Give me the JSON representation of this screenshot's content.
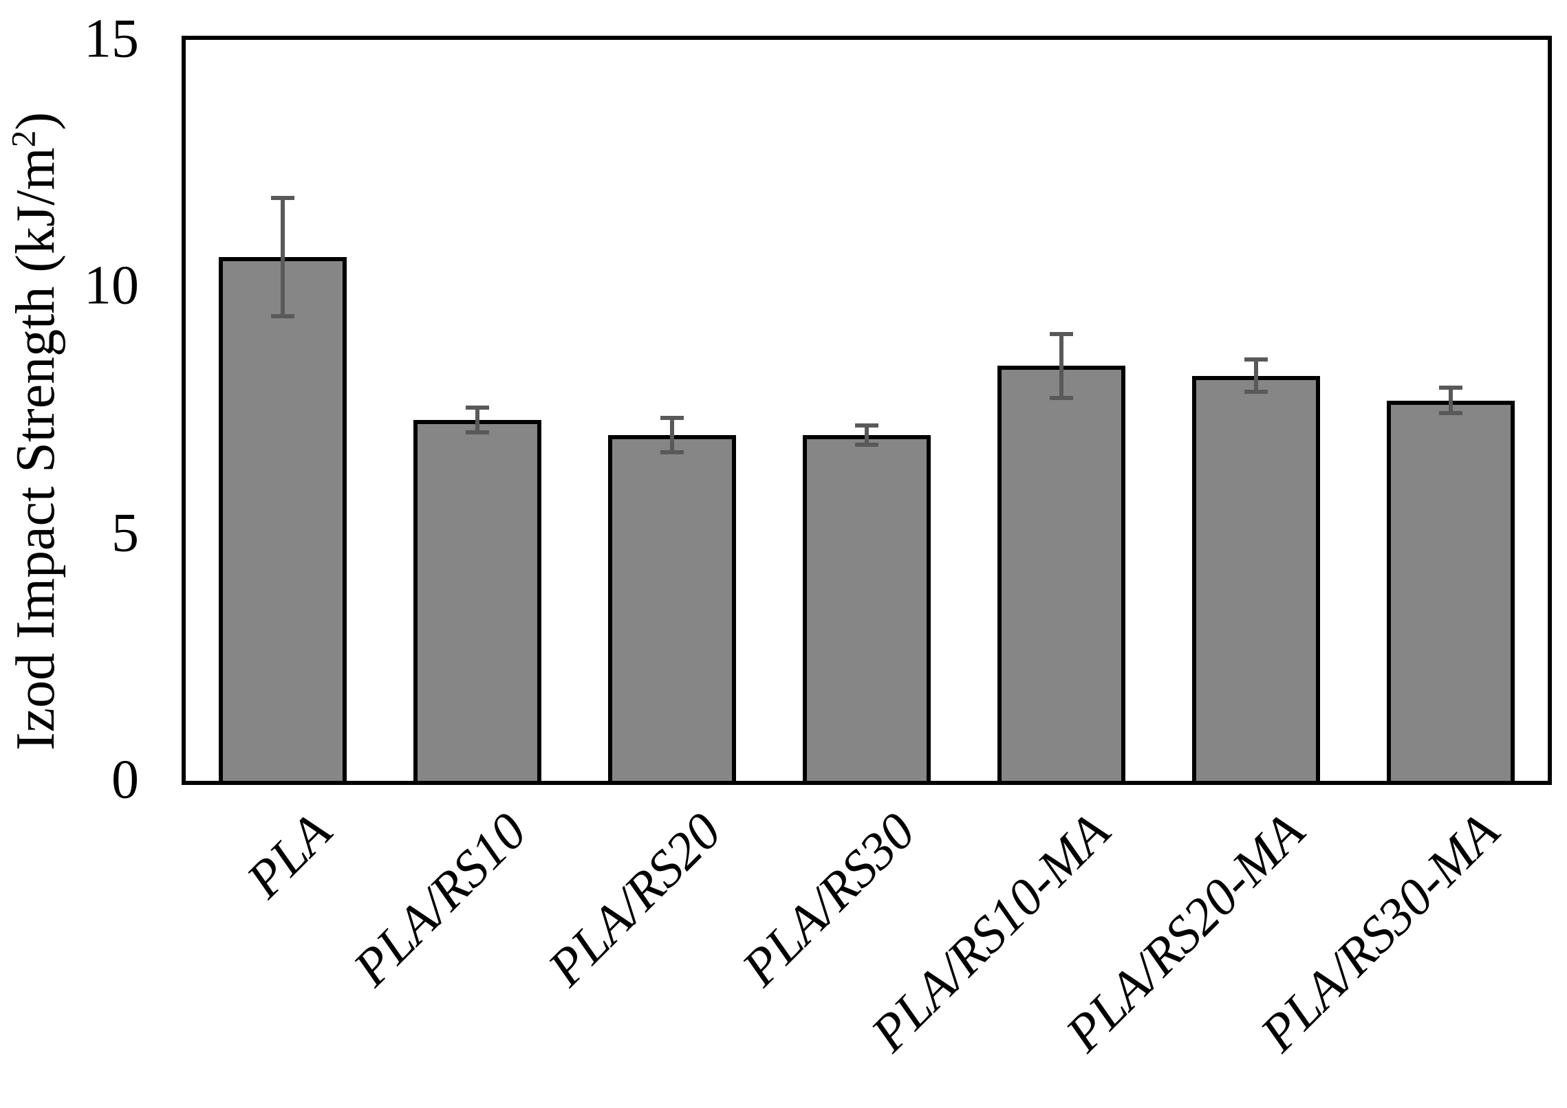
{
  "chart_data": {
    "type": "bar",
    "title": "",
    "xlabel": "",
    "ylabel": "Izod Impact Strength (kJ/m²)",
    "ylabel_parts": {
      "prefix": "Izod Impact Strength (kJ/m",
      "superscript": "2",
      "suffix": ")"
    },
    "categories": [
      "PLA",
      "PLA/RS10",
      "PLA/RS20",
      "PLA/RS30",
      "PLA/RS10-MA",
      "PLA/RS20-MA",
      "PLA/RS30-MA"
    ],
    "series": [
      {
        "name": "Izod impact strength",
        "values": [
          10.6,
          7.3,
          7.0,
          7.0,
          8.4,
          8.2,
          7.7
        ],
        "error_bars": [
          1.2,
          0.25,
          0.35,
          0.2,
          0.65,
          0.33,
          0.26
        ]
      }
    ],
    "ylim": [
      0,
      15
    ],
    "yticks": [
      0,
      5,
      10,
      15
    ],
    "grid": false,
    "legend_position": "none",
    "x_label_rotation_deg": 45,
    "colors": {
      "bar_fill": "#868686",
      "bar_border": "#000000",
      "error_bar": "#595959",
      "frame": "#000000",
      "text": "#000000",
      "background": "#ffffff"
    }
  }
}
